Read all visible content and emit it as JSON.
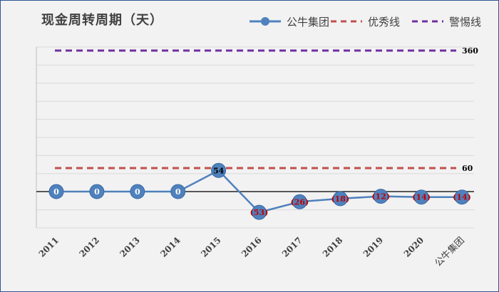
{
  "chart_data": {
    "type": "line",
    "title": "现金周转周期（天）",
    "categories": [
      "2011",
      "2012",
      "2013",
      "2014",
      "2015",
      "2016",
      "2017",
      "2018",
      "2019",
      "2020",
      "公牛集团"
    ],
    "series": [
      {
        "name": "公牛集团",
        "values": [
          0,
          0,
          0,
          0,
          54,
          -53,
          -26,
          -18,
          -12,
          -14,
          -14
        ],
        "labels": [
          "0",
          "0",
          "0",
          "0",
          "54",
          "(53)",
          "(26)",
          "(18)",
          "(12)",
          "(14)",
          "(14)"
        ],
        "color": "#4f81bd"
      }
    ],
    "reference_lines": [
      {
        "name": "优秀线",
        "value": 60,
        "label": "60",
        "color": "#c0504d",
        "style": "dashed"
      },
      {
        "name": "警惕线",
        "value": 360,
        "label": "360",
        "color": "#7030a0",
        "style": "dashed"
      }
    ],
    "xlabel": "",
    "ylabel": "",
    "grid": "horizontal",
    "legend_position": "top-right",
    "ylim": [
      -80,
      420
    ]
  }
}
